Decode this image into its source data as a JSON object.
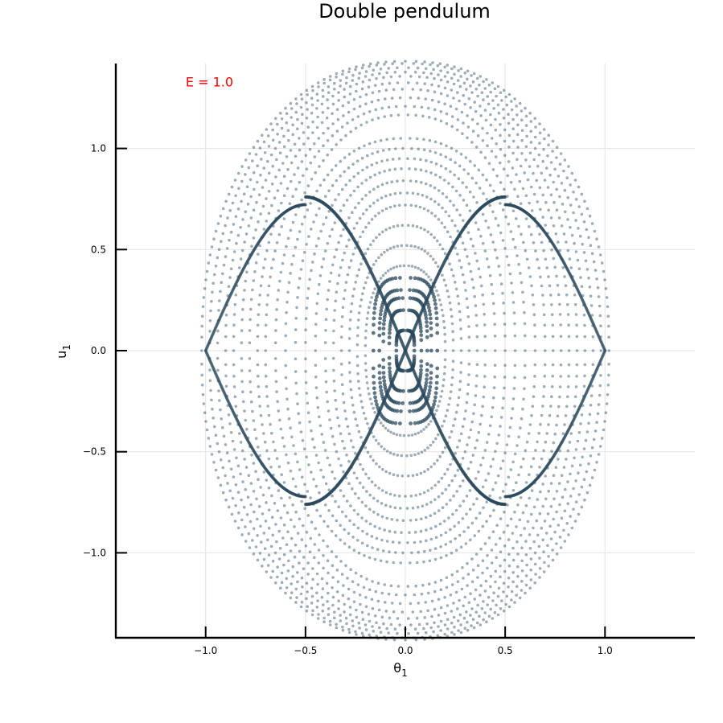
{
  "chart_data": {
    "type": "scatter",
    "title": "Double pendulum",
    "xlabel": "θ",
    "xlabel_sub": "1",
    "ylabel": "u",
    "ylabel_sub": "1",
    "xlim": [
      -1.45,
      1.45
    ],
    "ylim": [
      -1.42,
      1.42
    ],
    "xticks": [
      -1.0,
      -0.5,
      0.0,
      0.5,
      1.0
    ],
    "xtick_labels": [
      "−1.0",
      "−0.5",
      "0.0",
      "0.5",
      "1.0"
    ],
    "yticks": [
      -1.0,
      -0.5,
      0.0,
      0.5,
      1.0
    ],
    "ytick_labels": [
      "−1.0",
      "−0.5",
      "0.0",
      "0.5",
      "1.0"
    ],
    "grid": true,
    "annotation": {
      "text": "E = 1.0",
      "x": -1.1,
      "y": 1.33,
      "color": "#ff0000"
    },
    "marker_color": "#2b4a5e",
    "series": [
      {
        "kind": "nested-tori",
        "description_points": "closed invariant curves in the (θ1, u1) Poincaré section",
        "amplitudes_theta": [
          0.045,
          0.08,
          0.11,
          0.13,
          0.16,
          0.2,
          0.24,
          0.28,
          0.32,
          0.36,
          0.4,
          0.45,
          0.5,
          0.55,
          0.6,
          0.65,
          0.7,
          0.74,
          0.78,
          0.82,
          0.86,
          0.9,
          0.94,
          0.98,
          1.02
        ],
        "amplitudes_u": [
          0.1,
          0.2,
          0.26,
          0.3,
          0.36,
          0.42,
          0.52,
          0.62,
          0.72,
          0.78,
          0.84,
          0.9,
          0.95,
          1.0,
          1.05,
          1.1,
          1.14,
          1.18,
          1.22,
          1.25,
          1.28,
          1.3,
          1.32,
          1.34,
          1.35
        ]
      },
      {
        "kind": "separatrix-x",
        "description_points": "crossing chaotic band through origin",
        "end_theta": 0.5,
        "end_u": 0.76
      }
    ]
  }
}
